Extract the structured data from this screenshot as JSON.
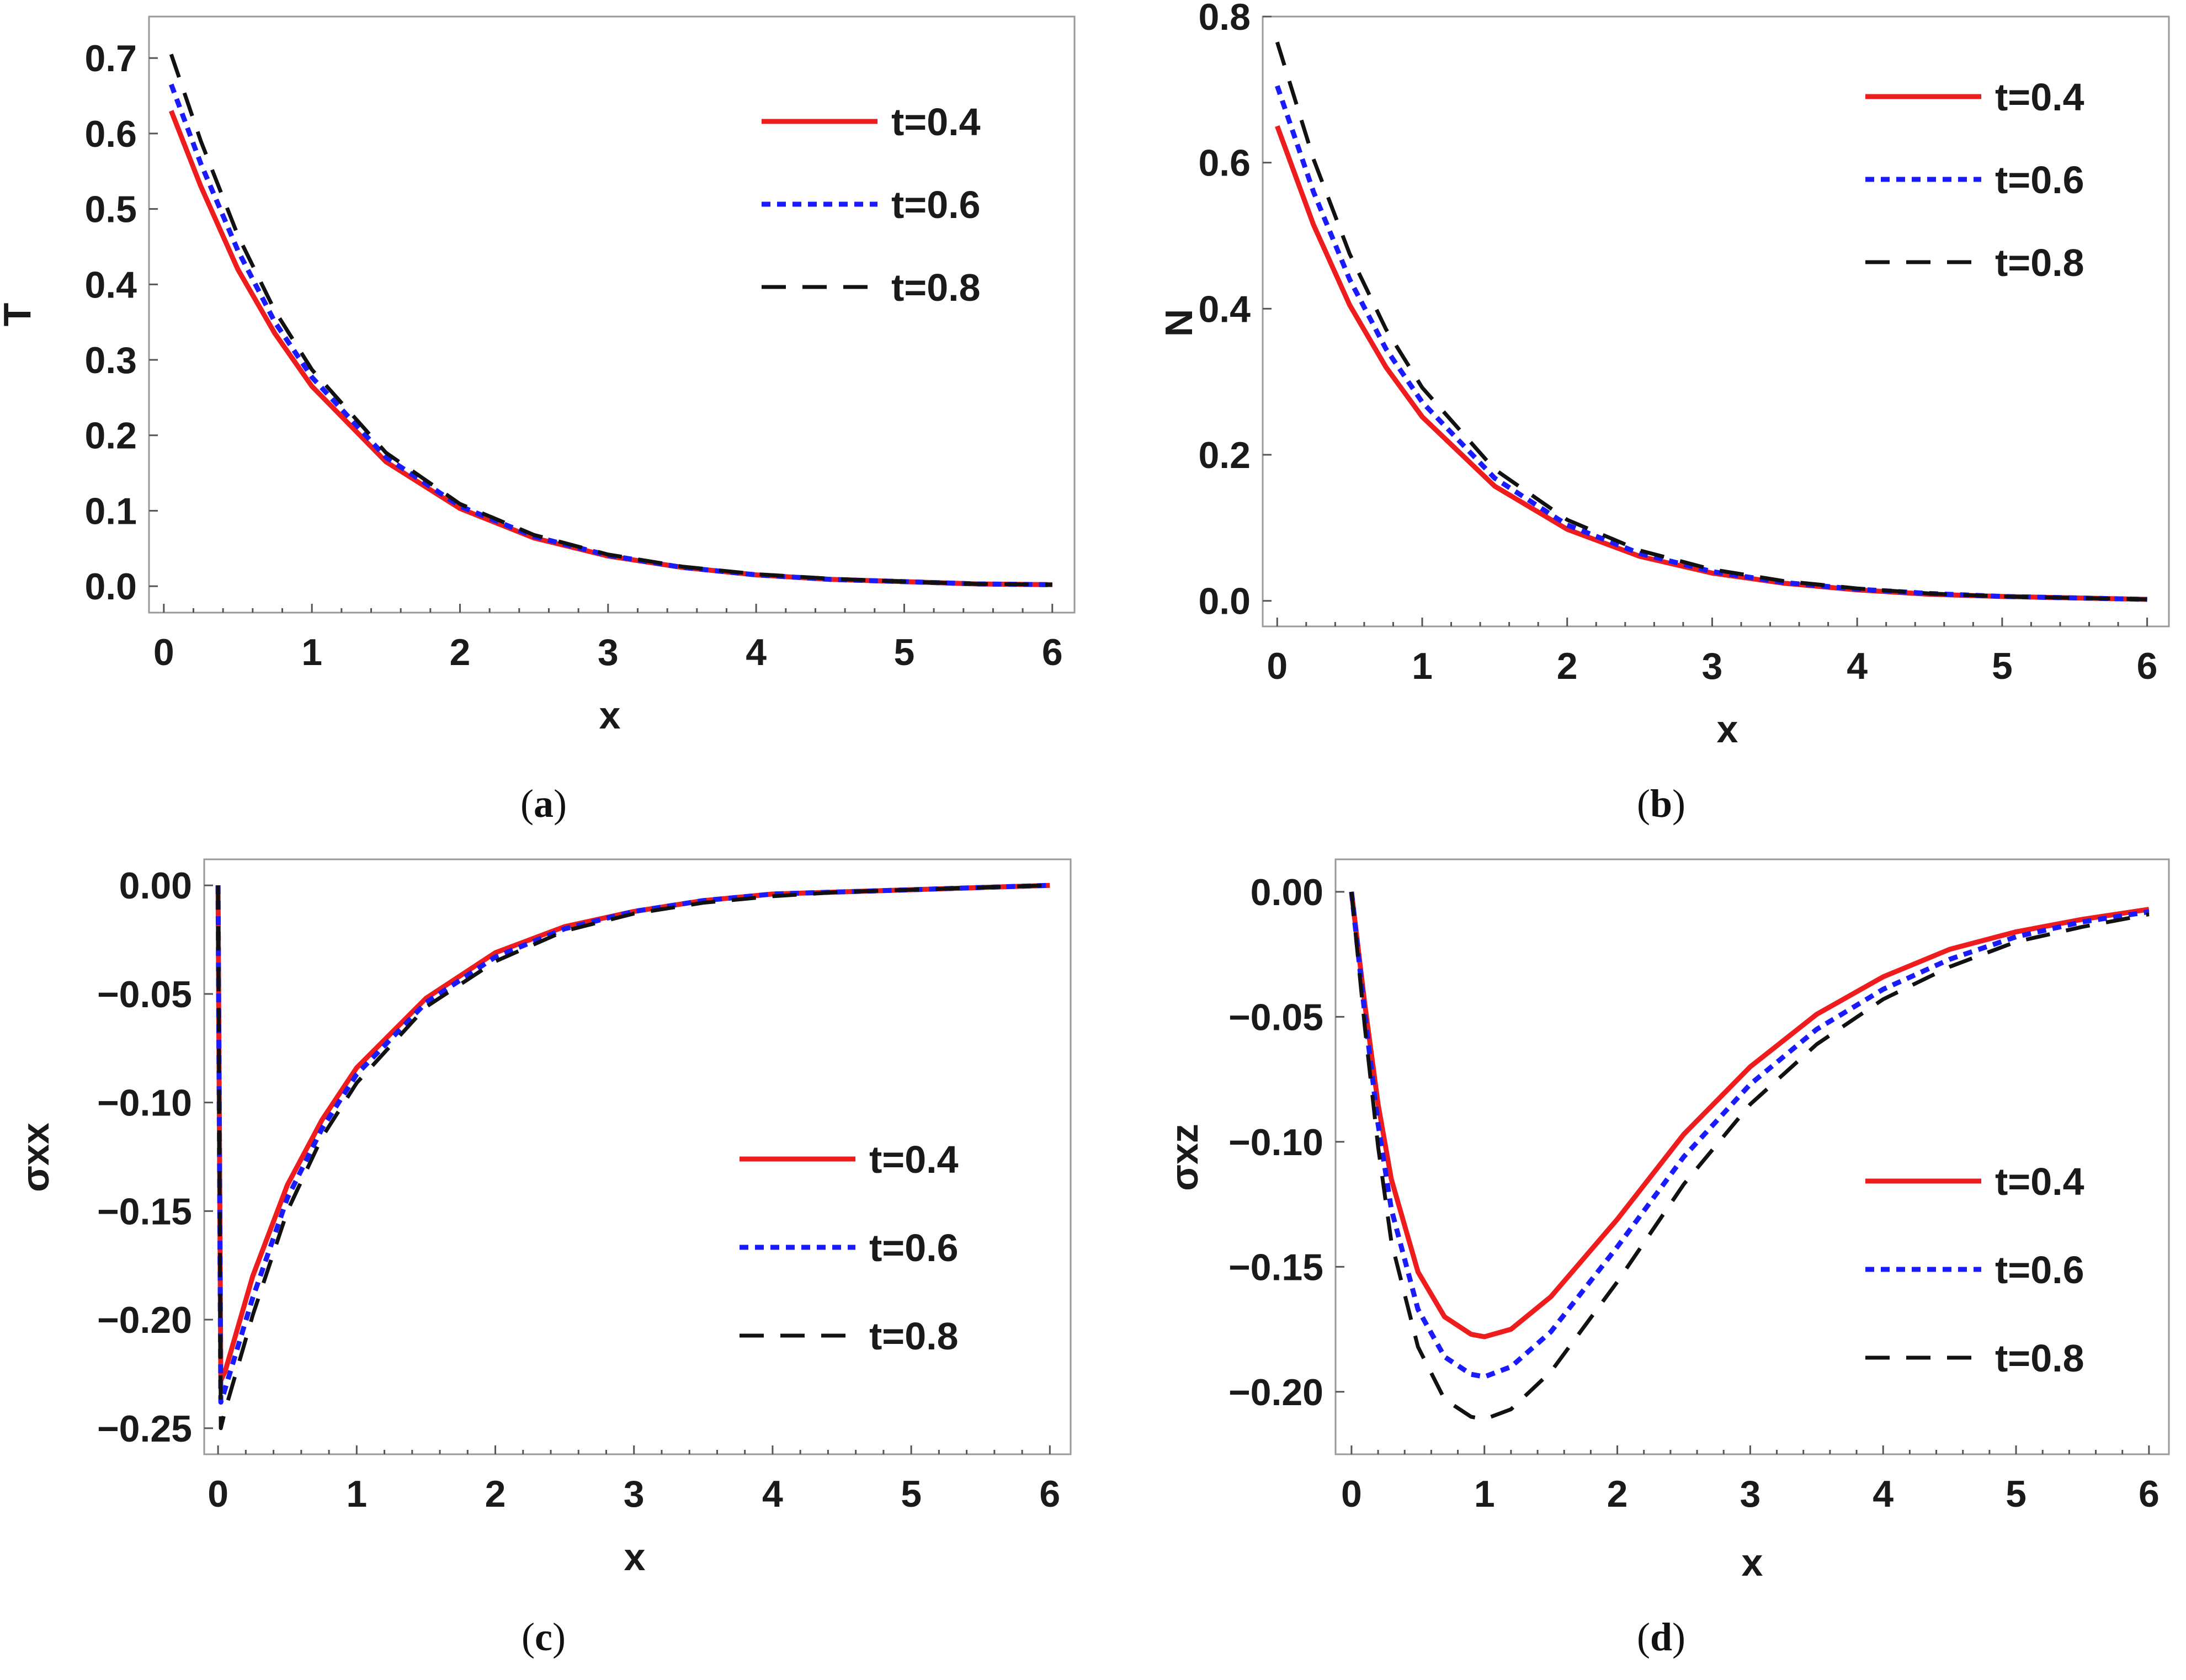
{
  "figure": {
    "series_styles": [
      {
        "name": "t=0.4",
        "color": "#ee1c1c",
        "dash": "solid"
      },
      {
        "name": "t=0.6",
        "color": "#1a1aff",
        "dash": "dotted"
      },
      {
        "name": "t=0.8",
        "color": "#111111",
        "dash": "dashed"
      }
    ]
  },
  "chart_data": [
    {
      "id": "a",
      "type": "line",
      "caption_open": "(",
      "caption_letter": "a",
      "caption_close": ")",
      "xlabel": "x",
      "ylabel": "T",
      "xlim": [
        -0.1,
        6.15
      ],
      "ylim": [
        -0.035,
        0.755
      ],
      "xticks": [
        0,
        1,
        2,
        3,
        4,
        5,
        6
      ],
      "xtick_labels": [
        "0",
        "1",
        "2",
        "3",
        "4",
        "5",
        "6"
      ],
      "yticks": [
        0.0,
        0.1,
        0.2,
        0.3,
        0.4,
        0.5,
        0.6,
        0.7
      ],
      "ytick_labels": [
        "0.0",
        "0.1",
        "0.2",
        "0.3",
        "0.4",
        "0.5",
        "0.6",
        "0.7"
      ],
      "legend_position": "top-right",
      "series": [
        {
          "name": "t=0.4",
          "x": [
            0.05,
            0.25,
            0.5,
            0.75,
            1.0,
            1.5,
            2.0,
            2.5,
            3.0,
            3.5,
            4.0,
            4.5,
            5.0,
            5.5,
            6.0
          ],
          "values": [
            0.63,
            0.53,
            0.42,
            0.335,
            0.265,
            0.165,
            0.103,
            0.064,
            0.04,
            0.025,
            0.015,
            0.009,
            0.006,
            0.003,
            0.002
          ]
        },
        {
          "name": "t=0.6",
          "x": [
            0.05,
            0.25,
            0.5,
            0.75,
            1.0,
            1.5,
            2.0,
            2.5,
            3.0,
            3.5,
            4.0,
            4.5,
            5.0,
            5.5,
            6.0
          ],
          "values": [
            0.665,
            0.56,
            0.445,
            0.35,
            0.277,
            0.171,
            0.106,
            0.066,
            0.041,
            0.025,
            0.015,
            0.009,
            0.006,
            0.003,
            0.002
          ]
        },
        {
          "name": "t=0.8",
          "x": [
            0.05,
            0.25,
            0.5,
            0.75,
            1.0,
            1.5,
            2.0,
            2.5,
            3.0,
            3.5,
            4.0,
            4.5,
            5.0,
            5.5,
            6.0
          ],
          "values": [
            0.705,
            0.59,
            0.465,
            0.365,
            0.287,
            0.177,
            0.109,
            0.068,
            0.042,
            0.026,
            0.016,
            0.01,
            0.006,
            0.003,
            0.002
          ]
        }
      ]
    },
    {
      "id": "b",
      "type": "line",
      "caption_open": "(",
      "caption_letter": "b",
      "caption_close": ")",
      "xlabel": "x",
      "ylabel": "N",
      "xlim": [
        -0.1,
        6.15
      ],
      "ylim": [
        -0.035,
        0.8
      ],
      "xticks": [
        0,
        1,
        2,
        3,
        4,
        5,
        6
      ],
      "xtick_labels": [
        "0",
        "1",
        "2",
        "3",
        "4",
        "5",
        "6"
      ],
      "yticks": [
        0.0,
        0.2,
        0.4,
        0.6,
        0.8
      ],
      "ytick_labels": [
        "0.0",
        "0.2",
        "0.4",
        "0.6",
        "0.8"
      ],
      "legend_position": "top-right",
      "series": [
        {
          "name": "t=0.4",
          "x": [
            0.0,
            0.25,
            0.5,
            0.75,
            1.0,
            1.5,
            2.0,
            2.5,
            3.0,
            3.5,
            4.0,
            4.5,
            5.0,
            5.5,
            6.0
          ],
          "values": [
            0.65,
            0.515,
            0.405,
            0.32,
            0.252,
            0.157,
            0.098,
            0.061,
            0.038,
            0.024,
            0.015,
            0.009,
            0.006,
            0.004,
            0.002
          ]
        },
        {
          "name": "t=0.6",
          "x": [
            0.0,
            0.25,
            0.5,
            0.75,
            1.0,
            1.5,
            2.0,
            2.5,
            3.0,
            3.5,
            4.0,
            4.5,
            5.0,
            5.5,
            6.0
          ],
          "values": [
            0.705,
            0.56,
            0.44,
            0.345,
            0.272,
            0.168,
            0.104,
            0.065,
            0.04,
            0.025,
            0.016,
            0.01,
            0.006,
            0.004,
            0.002
          ]
        },
        {
          "name": "t=0.8",
          "x": [
            0.0,
            0.25,
            0.5,
            0.75,
            1.0,
            1.5,
            2.0,
            2.5,
            3.0,
            3.5,
            4.0,
            4.5,
            5.0,
            5.5,
            6.0
          ],
          "values": [
            0.765,
            0.605,
            0.475,
            0.372,
            0.292,
            0.18,
            0.111,
            0.069,
            0.043,
            0.027,
            0.017,
            0.01,
            0.006,
            0.004,
            0.002
          ]
        }
      ]
    },
    {
      "id": "c",
      "type": "line",
      "caption_open": "(",
      "caption_letter": "c",
      "caption_close": ")",
      "xlabel": "x",
      "ylabel": "σxx",
      "xlim": [
        -0.1,
        6.15
      ],
      "ylim": [
        -0.262,
        0.012
      ],
      "xticks": [
        0,
        1,
        2,
        3,
        4,
        5,
        6
      ],
      "xtick_labels": [
        "0",
        "1",
        "2",
        "3",
        "4",
        "5",
        "6"
      ],
      "yticks": [
        0.0,
        -0.05,
        -0.1,
        -0.15,
        -0.2,
        -0.25
      ],
      "ytick_labels": [
        "0.00",
        "−0.05",
        "−0.10",
        "−0.15",
        "−0.20",
        "−0.25"
      ],
      "legend_position": "right",
      "series": [
        {
          "name": "t=0.4",
          "x": [
            0.0,
            0.02,
            0.05,
            0.25,
            0.5,
            0.75,
            1.0,
            1.5,
            2.0,
            2.5,
            3.0,
            3.5,
            4.0,
            4.5,
            5.0,
            5.5,
            6.0
          ],
          "values": [
            0.0,
            -0.228,
            -0.224,
            -0.18,
            -0.138,
            -0.108,
            -0.084,
            -0.052,
            -0.031,
            -0.019,
            -0.012,
            -0.007,
            -0.004,
            -0.003,
            -0.002,
            -0.001,
            0.0
          ]
        },
        {
          "name": "t=0.6",
          "x": [
            0.0,
            0.02,
            0.05,
            0.25,
            0.5,
            0.75,
            1.0,
            1.5,
            2.0,
            2.5,
            3.0,
            3.5,
            4.0,
            4.5,
            5.0,
            5.5,
            6.0
          ],
          "values": [
            0.0,
            -0.238,
            -0.232,
            -0.19,
            -0.144,
            -0.112,
            -0.087,
            -0.054,
            -0.033,
            -0.02,
            -0.012,
            -0.007,
            -0.004,
            -0.003,
            -0.002,
            -0.001,
            0.0
          ]
        },
        {
          "name": "t=0.8",
          "x": [
            0.0,
            0.02,
            0.05,
            0.25,
            0.5,
            0.75,
            1.0,
            1.5,
            2.0,
            2.5,
            3.0,
            3.5,
            4.0,
            4.5,
            5.0,
            5.5,
            6.0
          ],
          "values": [
            0.0,
            -0.25,
            -0.242,
            -0.198,
            -0.15,
            -0.116,
            -0.091,
            -0.056,
            -0.035,
            -0.021,
            -0.013,
            -0.008,
            -0.005,
            -0.003,
            -0.002,
            -0.001,
            0.0
          ]
        }
      ]
    },
    {
      "id": "d",
      "type": "line",
      "caption_open": "(",
      "caption_letter": "d",
      "caption_close": ")",
      "xlabel": "x",
      "ylabel": "σxz",
      "xlim": [
        -0.12,
        6.15
      ],
      "ylim": [
        -0.225,
        0.013
      ],
      "xticks": [
        0,
        1,
        2,
        3,
        4,
        5,
        6
      ],
      "xtick_labels": [
        "0",
        "1",
        "2",
        "3",
        "4",
        "5",
        "6"
      ],
      "yticks": [
        0.0,
        -0.05,
        -0.1,
        -0.15,
        -0.2
      ],
      "ytick_labels": [
        "0.00",
        "−0.05",
        "−0.10",
        "−0.15",
        "−0.20"
      ],
      "legend_position": "right",
      "series": [
        {
          "name": "t=0.4",
          "x": [
            0.0,
            0.1,
            0.2,
            0.3,
            0.5,
            0.7,
            0.9,
            1.0,
            1.2,
            1.5,
            2.0,
            2.5,
            3.0,
            3.5,
            4.0,
            4.5,
            5.0,
            5.5,
            6.0
          ],
          "values": [
            0.0,
            -0.045,
            -0.085,
            -0.115,
            -0.152,
            -0.17,
            -0.177,
            -0.178,
            -0.175,
            -0.162,
            -0.131,
            -0.097,
            -0.07,
            -0.049,
            -0.034,
            -0.023,
            -0.016,
            -0.011,
            -0.007
          ]
        },
        {
          "name": "t=0.6",
          "x": [
            0.0,
            0.1,
            0.2,
            0.3,
            0.5,
            0.7,
            0.9,
            1.0,
            1.2,
            1.5,
            2.0,
            2.5,
            3.0,
            3.5,
            4.0,
            4.5,
            5.0,
            5.5,
            6.0
          ],
          "values": [
            0.0,
            -0.049,
            -0.093,
            -0.127,
            -0.167,
            -0.186,
            -0.193,
            -0.194,
            -0.19,
            -0.176,
            -0.142,
            -0.106,
            -0.077,
            -0.055,
            -0.039,
            -0.027,
            -0.018,
            -0.012,
            -0.008
          ]
        },
        {
          "name": "t=0.8",
          "x": [
            0.0,
            0.1,
            0.2,
            0.3,
            0.5,
            0.7,
            0.9,
            1.0,
            1.2,
            1.5,
            2.0,
            2.5,
            3.0,
            3.5,
            4.0,
            4.5,
            5.0,
            5.5,
            6.0
          ],
          "values": [
            0.0,
            -0.054,
            -0.102,
            -0.14,
            -0.182,
            -0.203,
            -0.21,
            -0.211,
            -0.207,
            -0.192,
            -0.156,
            -0.117,
            -0.085,
            -0.061,
            -0.043,
            -0.03,
            -0.02,
            -0.014,
            -0.009
          ]
        }
      ]
    }
  ]
}
